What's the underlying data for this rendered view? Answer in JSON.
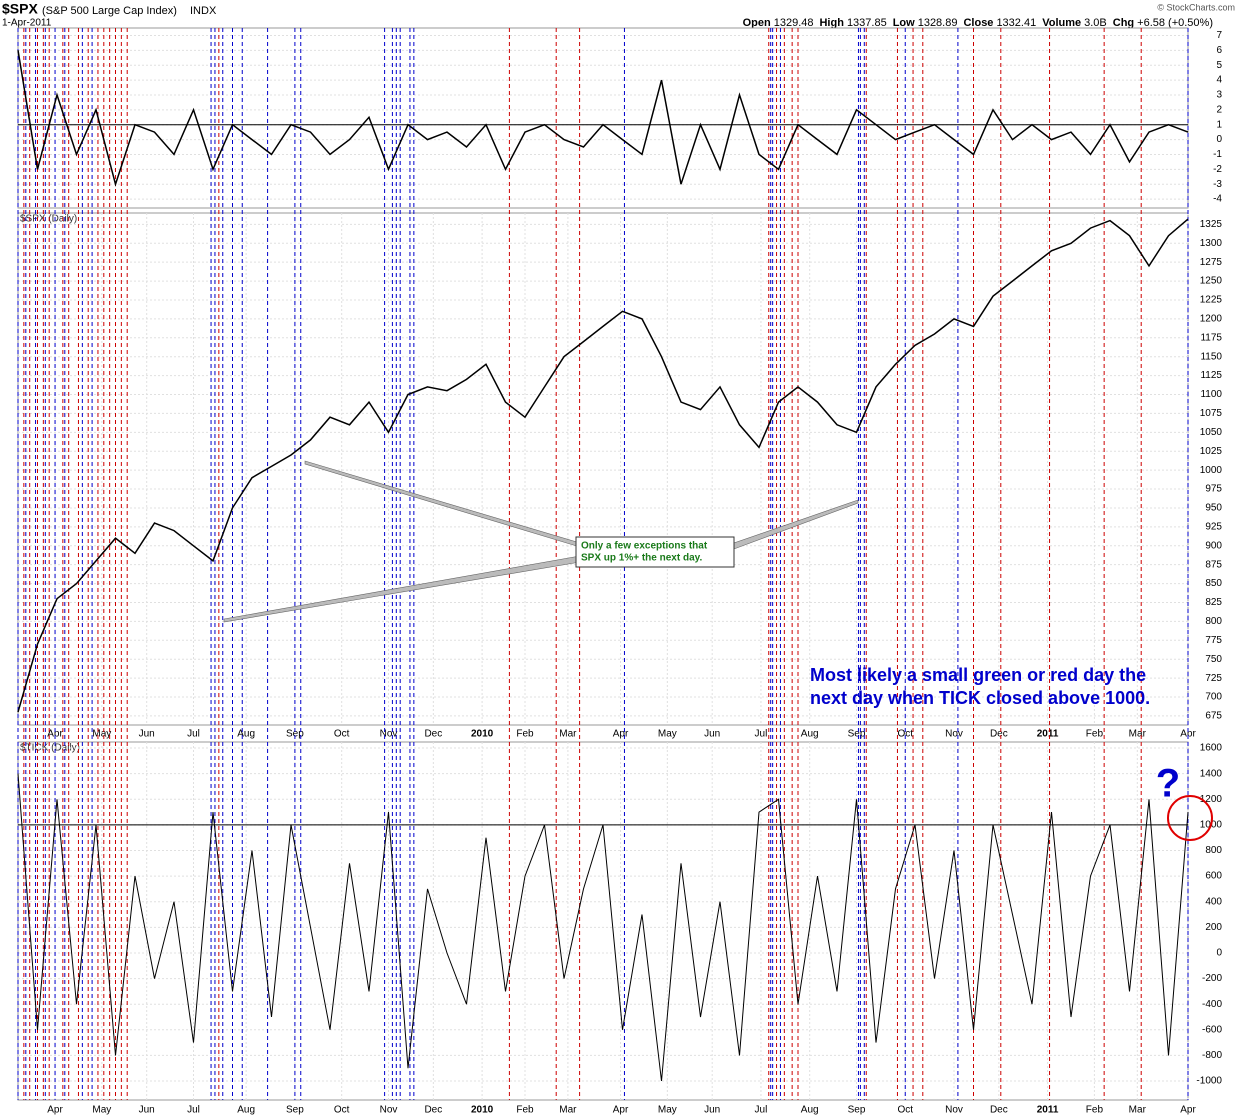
{
  "header": {
    "symbol": "$SPX",
    "name": "(S&P 500 Large Cap Index)",
    "exchange": "INDX",
    "date": "1-Apr-2011",
    "copyright": "© StockCharts.com",
    "quote": [
      {
        "label": "Open",
        "value": "1329.48"
      },
      {
        "label": "High",
        "value": "1337.85"
      },
      {
        "label": "Low",
        "value": "1328.89"
      },
      {
        "label": "Close",
        "value": "1332.41"
      },
      {
        "label": "Volume",
        "value": "3.0B"
      },
      {
        "label": "Chg",
        "value": "+6.58 (+0.50%)"
      }
    ]
  },
  "vlines": [
    {
      "color": "#cc0000",
      "x": [
        0.3,
        0.6,
        1.0,
        1.3,
        1.6,
        2.3,
        2.6,
        3.1,
        3.6,
        4.1,
        4.4,
        4.7,
        5.0,
        5.3,
        5.6,
        10.3,
        25.2,
        27.6,
        28.8,
        38.5,
        38.9,
        39.3,
        39.7,
        40.0,
        43.5,
        45.1,
        45.9,
        46.4,
        49.0,
        50.4,
        52.9,
        55.7,
        57.6
      ]
    },
    {
      "color": "#0000cc",
      "x": [
        0,
        0.4,
        0.9,
        1.4,
        1.9,
        2.4,
        3.3,
        3.8,
        9.9,
        10.1,
        10.5,
        11.0,
        11.5,
        12.8,
        14.2,
        14.5,
        18.8,
        19.2,
        19.4,
        19.6,
        20.1,
        20.3,
        31.1,
        38.6,
        38.7,
        39.1,
        43.1,
        43.2,
        43.4,
        45.5,
        48.2,
        60.0
      ]
    }
  ],
  "chart_data": [
    {
      "type": "line",
      "color": "#000000",
      "xlim": [
        0,
        60
      ],
      "ylim": [
        -4.6,
        7.5
      ],
      "yticks": [
        -4,
        -3,
        -2,
        -1,
        0,
        1,
        2,
        3,
        4,
        5,
        6,
        7
      ],
      "reference_line": 1,
      "grid": true,
      "values": [
        6,
        -2,
        3,
        -1,
        2,
        -3,
        1,
        0.5,
        -1,
        2,
        -2,
        1,
        0,
        -1,
        1,
        0.5,
        -1,
        0,
        1.5,
        -2,
        1,
        0,
        0.5,
        -0.5,
        1,
        -2,
        0.5,
        1,
        0,
        -0.5,
        1,
        0,
        -1,
        4,
        -3,
        1,
        -2,
        3,
        -1,
        -2,
        1,
        0,
        -1,
        2,
        1,
        0,
        0.5,
        1,
        0,
        -1,
        2,
        0,
        1,
        0,
        0.5,
        -1,
        1,
        -1.5,
        0.5,
        1,
        0.5
      ]
    },
    {
      "type": "line",
      "title": "$SPX (Daily)",
      "color": "#000000",
      "xlim": [
        0,
        60
      ],
      "ylim": [
        663,
        1340
      ],
      "grid": true,
      "yticks": [
        675,
        700,
        725,
        750,
        775,
        800,
        825,
        850,
        875,
        900,
        925,
        950,
        975,
        1000,
        1025,
        1050,
        1075,
        1100,
        1125,
        1150,
        1175,
        1200,
        1225,
        1250,
        1275,
        1300,
        1325
      ],
      "xticks": [
        {
          "value": 1.9,
          "label": "Apr"
        },
        {
          "value": 4.3,
          "label": "May"
        },
        {
          "value": 6.6,
          "label": "Jun"
        },
        {
          "value": 9.0,
          "label": "Jul"
        },
        {
          "value": 11.7,
          "label": "Aug"
        },
        {
          "value": 14.2,
          "label": "Sep"
        },
        {
          "value": 16.6,
          "label": "Oct"
        },
        {
          "value": 19.0,
          "label": "Nov"
        },
        {
          "value": 21.3,
          "label": "Dec"
        },
        {
          "value": 23.8,
          "label": "2010"
        },
        {
          "value": 26.0,
          "label": "Feb"
        },
        {
          "value": 28.2,
          "label": "Mar"
        },
        {
          "value": 30.9,
          "label": "Apr"
        },
        {
          "value": 33.3,
          "label": "May"
        },
        {
          "value": 35.6,
          "label": "Jun"
        },
        {
          "value": 38.1,
          "label": "Jul"
        },
        {
          "value": 40.6,
          "label": "Aug"
        },
        {
          "value": 43.0,
          "label": "Sep"
        },
        {
          "value": 45.5,
          "label": "Oct"
        },
        {
          "value": 48.0,
          "label": "Nov"
        },
        {
          "value": 50.3,
          "label": "Dec"
        },
        {
          "value": 52.8,
          "label": "2011"
        },
        {
          "value": 55.2,
          "label": "Feb"
        },
        {
          "value": 57.4,
          "label": "Mar"
        },
        {
          "value": 60.0,
          "label": "Apr"
        }
      ],
      "values": [
        680,
        770,
        830,
        850,
        880,
        910,
        890,
        930,
        920,
        900,
        880,
        950,
        990,
        1005,
        1020,
        1040,
        1070,
        1060,
        1090,
        1050,
        1100,
        1110,
        1105,
        1120,
        1140,
        1090,
        1070,
        1110,
        1150,
        1170,
        1190,
        1210,
        1200,
        1150,
        1090,
        1080,
        1110,
        1060,
        1030,
        1090,
        1110,
        1090,
        1060,
        1050,
        1110,
        1140,
        1165,
        1180,
        1200,
        1190,
        1230,
        1250,
        1270,
        1290,
        1300,
        1320,
        1330,
        1310,
        1270,
        1310,
        1332
      ],
      "annotations": {
        "callout": [
          "Only a few exceptions that",
          "SPX up 1%+ the next day."
        ],
        "note": [
          "Most likely a small green or red day the",
          "next day when TICK closed above 1000."
        ]
      }
    },
    {
      "type": "line",
      "title": "$TICK (Daily)",
      "color": "#000000",
      "xlim": [
        0,
        60
      ],
      "ylim": [
        -1148,
        1647
      ],
      "grid": true,
      "yticks": [
        -1000,
        -800,
        -600,
        -400,
        -200,
        0,
        200,
        400,
        600,
        800,
        1000,
        1200,
        1400,
        1600
      ],
      "reference_line": 1000,
      "xticks": [
        {
          "value": 1.9,
          "label": "Apr"
        },
        {
          "value": 4.3,
          "label": "May"
        },
        {
          "value": 6.6,
          "label": "Jun"
        },
        {
          "value": 9.0,
          "label": "Jul"
        },
        {
          "value": 11.7,
          "label": "Aug"
        },
        {
          "value": 14.2,
          "label": "Sep"
        },
        {
          "value": 16.6,
          "label": "Oct"
        },
        {
          "value": 19.0,
          "label": "Nov"
        },
        {
          "value": 21.3,
          "label": "Dec"
        },
        {
          "value": 23.8,
          "label": "2010"
        },
        {
          "value": 26.0,
          "label": "Feb"
        },
        {
          "value": 28.2,
          "label": "Mar"
        },
        {
          "value": 30.9,
          "label": "Apr"
        },
        {
          "value": 33.3,
          "label": "May"
        },
        {
          "value": 35.6,
          "label": "Jun"
        },
        {
          "value": 38.1,
          "label": "Jul"
        },
        {
          "value": 40.6,
          "label": "Aug"
        },
        {
          "value": 43.0,
          "label": "Sep"
        },
        {
          "value": 45.5,
          "label": "Oct"
        },
        {
          "value": 48.0,
          "label": "Nov"
        },
        {
          "value": 50.3,
          "label": "Dec"
        },
        {
          "value": 52.8,
          "label": "2011"
        },
        {
          "value": 55.2,
          "label": "Feb"
        },
        {
          "value": 57.4,
          "label": "Mar"
        },
        {
          "value": 60.0,
          "label": "Apr"
        }
      ],
      "values": [
        1400,
        -600,
        1200,
        -400,
        1000,
        -800,
        600,
        -200,
        400,
        -700,
        1100,
        -300,
        800,
        -500,
        1000,
        200,
        -600,
        700,
        -300,
        1100,
        -900,
        500,
        0,
        -400,
        900,
        -300,
        600,
        1000,
        -200,
        500,
        1000,
        -600,
        300,
        -1000,
        700,
        -500,
        400,
        -800,
        1100,
        1200,
        -400,
        600,
        -300,
        1200,
        -700,
        500,
        1000,
        -200,
        800,
        -600,
        1000,
        300,
        -400,
        1100,
        -500,
        600,
        1000,
        -300,
        1200,
        -800,
        1100
      ],
      "annotation": "?"
    }
  ]
}
